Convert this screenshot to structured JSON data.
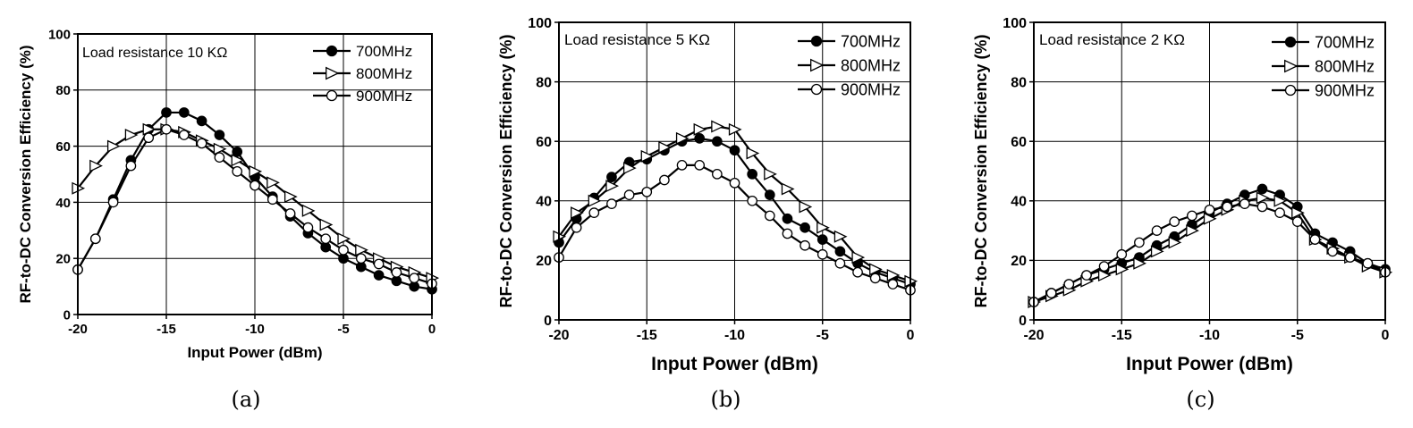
{
  "chart_data": [
    {
      "type": "line",
      "panel": "(a)",
      "annotation": "Load resistance 10 KΩ",
      "xlabel": "Input Power (dBm)",
      "ylabel": "RF-to-DC Conversion Efficiency (%)",
      "xlim": [
        -20,
        0
      ],
      "ylim": [
        0,
        100
      ],
      "xticks": [
        -20,
        -15,
        -10,
        -5,
        0
      ],
      "yticks": [
        0,
        20,
        40,
        60,
        80,
        100
      ],
      "grid": true,
      "legend_position": "top-right",
      "series": [
        {
          "name": "700MHz",
          "marker": "filled-circle",
          "x": [
            -20,
            -19,
            -18,
            -17,
            -16,
            -15,
            -14,
            -13,
            -12,
            -11,
            -10,
            -9,
            -8,
            -7,
            -6,
            -5,
            -4,
            -3,
            -2,
            -1,
            0
          ],
          "y": [
            16,
            27,
            41,
            55,
            66,
            72,
            72,
            69,
            64,
            58,
            49,
            42,
            35,
            29,
            24,
            20,
            17,
            14,
            12,
            10,
            9
          ]
        },
        {
          "name": "800MHz",
          "marker": "open-triangle",
          "x": [
            -20,
            -19,
            -18,
            -17,
            -16,
            -15,
            -14,
            -13,
            -12,
            -11,
            -10,
            -9,
            -8,
            -7,
            -6,
            -5,
            -4,
            -3,
            -2,
            -1,
            0
          ],
          "y": [
            45,
            53,
            60,
            64,
            66,
            66,
            65,
            62,
            59,
            55,
            51,
            47,
            42,
            37,
            32,
            27,
            23,
            20,
            17,
            15,
            13
          ]
        },
        {
          "name": "900MHz",
          "marker": "open-circle",
          "x": [
            -20,
            -19,
            -18,
            -17,
            -16,
            -15,
            -14,
            -13,
            -12,
            -11,
            -10,
            -9,
            -8,
            -7,
            -6,
            -5,
            -4,
            -3,
            -2,
            -1,
            0
          ],
          "y": [
            16,
            27,
            40,
            53,
            63,
            66,
            64,
            61,
            56,
            51,
            46,
            41,
            36,
            31,
            27,
            23,
            20,
            18,
            15,
            13,
            11
          ]
        }
      ]
    },
    {
      "type": "line",
      "panel": "(b)",
      "annotation": "Load resistance 5 KΩ",
      "xlabel": "Input Power (dBm)",
      "ylabel": "RF-to-DC Conversion Efficiency (%)",
      "xlim": [
        -20,
        0
      ],
      "ylim": [
        0,
        100
      ],
      "xticks": [
        -20,
        -15,
        -10,
        -5,
        0
      ],
      "yticks": [
        0,
        20,
        40,
        60,
        80,
        100
      ],
      "grid": true,
      "legend_position": "top-right",
      "series": [
        {
          "name": "700MHz",
          "marker": "filled-circle",
          "x": [
            -20,
            -19,
            -18,
            -17,
            -16,
            -15,
            -14,
            -13,
            -12,
            -11,
            -10,
            -9,
            -8,
            -7,
            -6,
            -5,
            -4,
            -3,
            -2,
            -1,
            0
          ],
          "y": [
            26,
            34,
            41,
            48,
            53,
            54,
            57,
            60,
            61,
            60,
            57,
            49,
            42,
            34,
            31,
            27,
            23,
            19,
            16,
            14,
            12
          ]
        },
        {
          "name": "800MHz",
          "marker": "open-triangle",
          "x": [
            -20,
            -19,
            -18,
            -17,
            -16,
            -15,
            -14,
            -13,
            -12,
            -11,
            -10,
            -9,
            -8,
            -7,
            -6,
            -5,
            -4,
            -3,
            -2,
            -1,
            0
          ],
          "y": [
            28,
            36,
            40,
            45,
            51,
            55,
            58,
            61,
            64,
            65,
            64,
            56,
            49,
            44,
            38,
            31,
            28,
            21,
            17,
            15,
            13
          ]
        },
        {
          "name": "900MHz",
          "marker": "open-circle",
          "x": [
            -20,
            -19,
            -18,
            -17,
            -16,
            -15,
            -14,
            -13,
            -12,
            -11,
            -10,
            -9,
            -8,
            -7,
            -6,
            -5,
            -4,
            -3,
            -2,
            -1,
            0
          ],
          "y": [
            21,
            31,
            36,
            39,
            42,
            43,
            47,
            52,
            52,
            49,
            46,
            40,
            35,
            29,
            25,
            22,
            19,
            16,
            14,
            12,
            10
          ]
        }
      ]
    },
    {
      "type": "line",
      "panel": "(c)",
      "annotation": "Load resistance 2 KΩ",
      "xlabel": "Input Power (dBm)",
      "ylabel": "RF-to-DC Conversion Efficiency (%)",
      "xlim": [
        -20,
        0
      ],
      "ylim": [
        0,
        100
      ],
      "xticks": [
        -20,
        -15,
        -10,
        -5,
        0
      ],
      "yticks": [
        0,
        20,
        40,
        60,
        80,
        100
      ],
      "grid": true,
      "legend_position": "top-right",
      "series": [
        {
          "name": "700MHz",
          "marker": "filled-circle",
          "x": [
            -20,
            -19,
            -18,
            -17,
            -16,
            -15,
            -14,
            -13,
            -12,
            -11,
            -10,
            -9,
            -8,
            -7,
            -6,
            -5,
            -4,
            -3,
            -2,
            -1,
            0
          ],
          "y": [
            6,
            9,
            12,
            15,
            17,
            19,
            21,
            25,
            28,
            32,
            36,
            39,
            42,
            44,
            42,
            38,
            29,
            26,
            23,
            19,
            17
          ]
        },
        {
          "name": "800MHz",
          "marker": "open-triangle",
          "x": [
            -20,
            -19,
            -18,
            -17,
            -16,
            -15,
            -14,
            -13,
            -12,
            -11,
            -10,
            -9,
            -8,
            -7,
            -6,
            -5,
            -4,
            -3,
            -2,
            -1,
            0
          ],
          "y": [
            6,
            8,
            10,
            13,
            15,
            17,
            19,
            23,
            26,
            30,
            34,
            37,
            40,
            41,
            40,
            36,
            27,
            24,
            21,
            18,
            16
          ]
        },
        {
          "name": "900MHz",
          "marker": "open-circle",
          "x": [
            -20,
            -19,
            -18,
            -17,
            -16,
            -15,
            -14,
            -13,
            -12,
            -11,
            -10,
            -9,
            -8,
            -7,
            -6,
            -5,
            -4,
            -3,
            -2,
            -1,
            0
          ],
          "y": [
            6,
            9,
            12,
            15,
            18,
            22,
            26,
            30,
            33,
            35,
            37,
            38,
            39,
            38,
            36,
            33,
            27,
            23,
            21,
            19,
            16
          ]
        }
      ]
    }
  ]
}
